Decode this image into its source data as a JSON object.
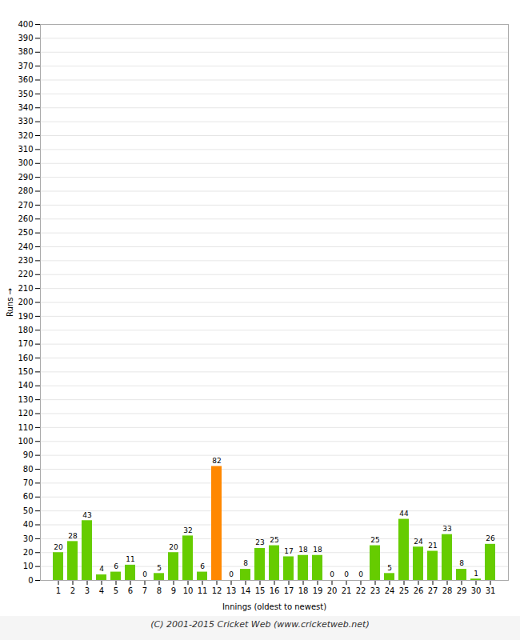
{
  "chart_data": {
    "type": "bar",
    "categories": [
      "1",
      "2",
      "3",
      "4",
      "5",
      "6",
      "7",
      "8",
      "9",
      "10",
      "11",
      "12",
      "13",
      "14",
      "15",
      "16",
      "17",
      "18",
      "19",
      "20",
      "21",
      "22",
      "23",
      "24",
      "25",
      "26",
      "27",
      "28",
      "29",
      "30",
      "31"
    ],
    "values": [
      20,
      28,
      43,
      4,
      6,
      11,
      0,
      5,
      20,
      32,
      6,
      82,
      0,
      8,
      23,
      25,
      17,
      18,
      18,
      0,
      0,
      0,
      25,
      5,
      44,
      24,
      21,
      33,
      8,
      1,
      26
    ],
    "colors": [
      "#66cc00",
      "#66cc00",
      "#66cc00",
      "#66cc00",
      "#66cc00",
      "#66cc00",
      "#66cc00",
      "#66cc00",
      "#66cc00",
      "#66cc00",
      "#66cc00",
      "#ff8800",
      "#66cc00",
      "#66cc00",
      "#66cc00",
      "#66cc00",
      "#66cc00",
      "#66cc00",
      "#66cc00",
      "#66cc00",
      "#66cc00",
      "#66cc00",
      "#66cc00",
      "#66cc00",
      "#66cc00",
      "#66cc00",
      "#66cc00",
      "#66cc00",
      "#66cc00",
      "#66cc00",
      "#66cc00"
    ],
    "xlabel": "Innings (oldest to newest)",
    "ylabel": "Runs",
    "ylim": [
      0,
      400
    ],
    "yticks": [
      0,
      10,
      20,
      30,
      40,
      50,
      60,
      70,
      80,
      90,
      100,
      110,
      120,
      130,
      140,
      150,
      160,
      170,
      180,
      190,
      200,
      210,
      220,
      230,
      240,
      250,
      260,
      270,
      280,
      290,
      300,
      310,
      320,
      330,
      340,
      350,
      360,
      370,
      380,
      390,
      400
    ],
    "grid": true,
    "data_labels": true,
    "annotations": [
      "(C) 2001-2015 Cricket Web (www.cricketweb.net)"
    ]
  }
}
